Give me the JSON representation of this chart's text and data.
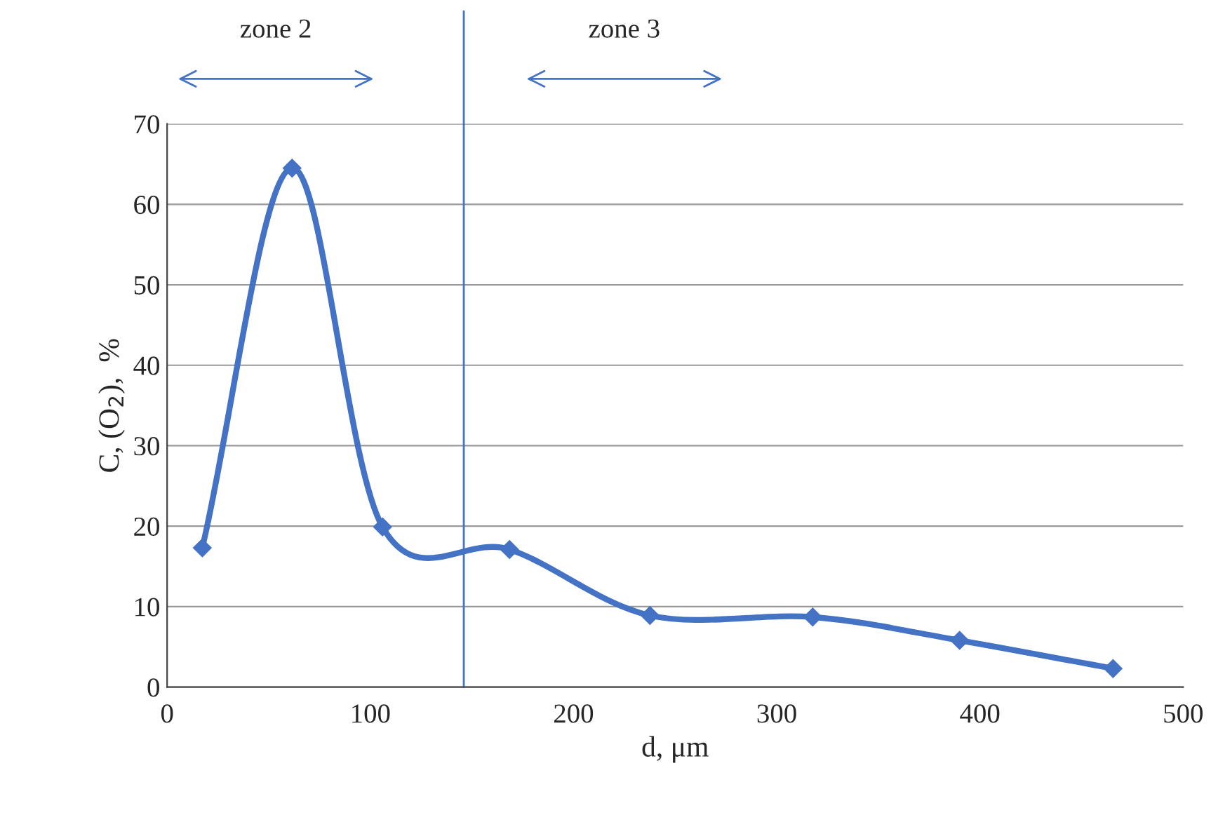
{
  "chart_data": {
    "type": "line",
    "xlabel": "d, μm",
    "ylabel": "C, (O$_{2}$),  %",
    "x": [
      17.3,
      61.5,
      106,
      168.5,
      237.6,
      317.7,
      390,
      465.5
    ],
    "series": [
      {
        "color": "#4472c4",
        "values": [
          17.3,
          64.5,
          19.9,
          17.1,
          8.9,
          8.7,
          5.8,
          2.3
        ]
      }
    ],
    "xlim": [
      0,
      500
    ],
    "xticks": [
      0,
      100,
      200,
      300,
      400,
      500
    ],
    "ylim": [
      0,
      70
    ],
    "yticks": [
      0,
      10,
      20,
      30,
      40,
      50,
      60,
      70
    ],
    "grid": "y",
    "marker": "diamond",
    "line_style": "solid",
    "ref_lines": [
      {
        "axis": "x",
        "value": 146,
        "color": "#4472c4"
      }
    ],
    "annotations": [
      "zone 2",
      "zone 3"
    ]
  }
}
